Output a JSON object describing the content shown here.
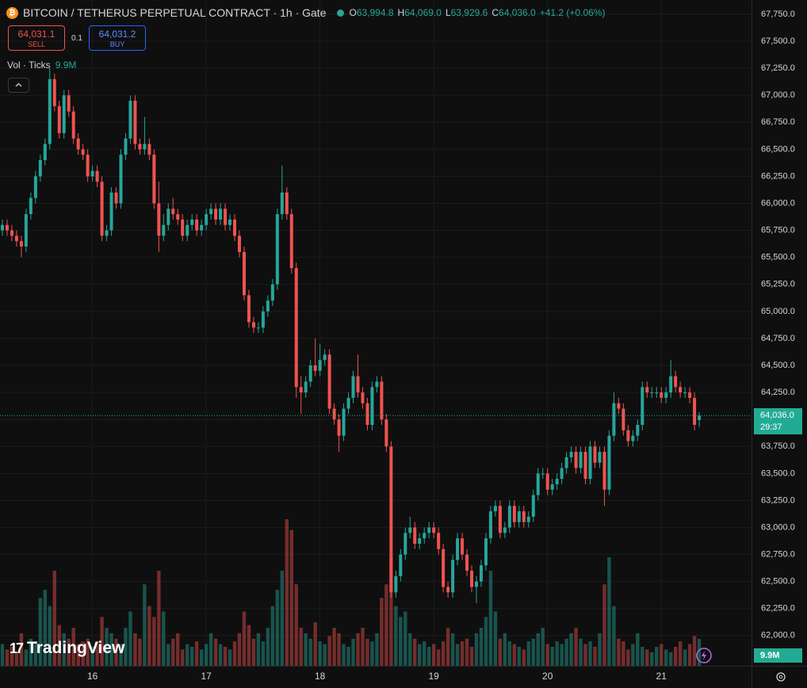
{
  "chart_data": {
    "type": "candlestick",
    "symbol_title": "BITCOIN / TETHERUS PERPETUAL CONTRACT · 1h · Gate",
    "ohlc_header": [
      {
        "key": "O",
        "text": "63,994.8"
      },
      {
        "key": "H",
        "text": "64,069.0"
      },
      {
        "key": "L",
        "text": "63,929.6"
      },
      {
        "key": "C",
        "text": "64,036.0"
      }
    ],
    "change_text": "+41.2 (+0.06%)",
    "sell": {
      "price": "64,031.1",
      "label": "SELL"
    },
    "spread": "0.1",
    "buy": {
      "price": "64,031.2",
      "label": "BUY"
    },
    "volume_indicator": {
      "name": "Vol · Ticks",
      "value": "9.9M"
    },
    "last_price_label": "64,036.0",
    "countdown": "29:37",
    "volume_badge": "9.9M",
    "logo": "TradingView",
    "up_color": "#26a69a",
    "down_color": "#ef5350",
    "grid": true,
    "ylim": [
      61720,
      67882
    ],
    "yticks": [
      {
        "value": 62000,
        "label": "62,000.0"
      },
      {
        "value": 62250,
        "label": "62,250.0"
      },
      {
        "value": 62500,
        "label": "62,500.0"
      },
      {
        "value": 62750,
        "label": "62,750.0"
      },
      {
        "value": 63000,
        "label": "63,000.0"
      },
      {
        "value": 63250,
        "label": "63,250.0"
      },
      {
        "value": 63500,
        "label": "63,500.0"
      },
      {
        "value": 63750,
        "label": "63,750.0"
      },
      {
        "value": 64000,
        "label": "64,000.0"
      },
      {
        "value": 64250,
        "label": "64,250.0"
      },
      {
        "value": 64500,
        "label": "64,500.0"
      },
      {
        "value": 64750,
        "label": "64,750.0"
      },
      {
        "value": 65000,
        "label": "65,000.0"
      },
      {
        "value": 65250,
        "label": "65,250.0"
      },
      {
        "value": 65500,
        "label": "65,500.0"
      },
      {
        "value": 65750,
        "label": "65,750.0"
      },
      {
        "value": 66000,
        "label": "66,000.0"
      },
      {
        "value": 66250,
        "label": "66,250.0"
      },
      {
        "value": 66500,
        "label": "66,500.0"
      },
      {
        "value": 66750,
        "label": "66,750.0"
      },
      {
        "value": 67000,
        "label": "67,000.0"
      },
      {
        "value": 67250,
        "label": "67,250.0"
      },
      {
        "value": 67500,
        "label": "67,500.0"
      },
      {
        "value": 67750,
        "label": "67,750.0"
      }
    ],
    "xticks": [
      {
        "value": 19,
        "label": "16"
      },
      {
        "value": 43,
        "label": "17"
      },
      {
        "value": 67,
        "label": "18"
      },
      {
        "value": 91,
        "label": "19"
      },
      {
        "value": 115,
        "label": "20"
      },
      {
        "value": 139,
        "label": "21"
      }
    ],
    "candles": {
      "open": [
        65750,
        65800,
        65750,
        65700,
        65650,
        65600,
        65900,
        66050,
        66250,
        66400,
        66550,
        67150,
        66900,
        66650,
        67000,
        66850,
        66600,
        66500,
        66450,
        66250,
        66300,
        66200,
        65700,
        65750,
        66100,
        66000,
        66450,
        66600,
        66950,
        66550,
        66500,
        66550,
        66450,
        66000,
        65700,
        65800,
        65950,
        65900,
        65850,
        65700,
        65800,
        65850,
        65750,
        65800,
        65900,
        65950,
        65850,
        65950,
        65800,
        65850,
        65700,
        65550,
        65150,
        64900,
        64850,
        64850,
        65000,
        65100,
        65250,
        65900,
        66100,
        65900,
        65400,
        64300,
        64250,
        64350,
        64500,
        64450,
        64550,
        64600,
        64100,
        64000,
        63850,
        64100,
        64200,
        64400,
        64250,
        64150,
        63950,
        64300,
        64350,
        64000,
        63750,
        62400,
        62550,
        62750,
        62950,
        63000,
        62850,
        62900,
        62950,
        63000,
        62950,
        62800,
        62450,
        62400,
        62700,
        62900,
        62750,
        62600,
        62450,
        62500,
        62650,
        62900,
        63150,
        63200,
        62950,
        63000,
        63200,
        63050,
        63150,
        63050,
        63100,
        63300,
        63500,
        63500,
        63350,
        63400,
        63450,
        63550,
        63650,
        63700,
        63550,
        63700,
        63450,
        63750,
        63600,
        63700,
        63350,
        63850,
        64150,
        64100,
        63900,
        63800,
        63850,
        63950,
        64300,
        64250,
        64250,
        64250,
        64200,
        64250,
        64400,
        64300,
        64250,
        64250,
        64200,
        63994.8
      ],
      "high": [
        65850,
        65850,
        65800,
        65750,
        65700,
        65950,
        66100,
        66300,
        66450,
        66600,
        67250,
        67200,
        66950,
        67050,
        67050,
        66900,
        66650,
        66550,
        66500,
        66350,
        66350,
        66250,
        65800,
        66150,
        66150,
        66500,
        66650,
        67000,
        67000,
        66600,
        66800,
        66600,
        66500,
        66200,
        65900,
        66000,
        66050,
        65950,
        65900,
        65850,
        65900,
        65900,
        65850,
        65950,
        66000,
        66000,
        66000,
        66000,
        65900,
        65900,
        65750,
        65600,
        65200,
        64950,
        64900,
        65050,
        65150,
        65300,
        65950,
        66350,
        66150,
        65950,
        65450,
        64400,
        64400,
        64550,
        64750,
        64700,
        64650,
        64650,
        64150,
        64050,
        64150,
        64250,
        64450,
        64600,
        64300,
        64200,
        64350,
        64400,
        64400,
        64050,
        63800,
        62600,
        62800,
        63000,
        63100,
        63050,
        62950,
        63000,
        63050,
        63050,
        63000,
        62850,
        62500,
        62750,
        62950,
        62950,
        62800,
        62650,
        62550,
        62700,
        62950,
        63200,
        63250,
        63250,
        63050,
        63250,
        63250,
        63200,
        63200,
        63150,
        63350,
        63550,
        63550,
        63550,
        63450,
        63500,
        63600,
        63700,
        63750,
        63750,
        63750,
        63750,
        63800,
        63800,
        63750,
        63750,
        63900,
        64250,
        64200,
        64150,
        63950,
        63900,
        64000,
        64350,
        64350,
        64300,
        64300,
        64300,
        64300,
        64550,
        64450,
        64350,
        64300,
        64300,
        64250,
        64069
      ],
      "low": [
        65700,
        65700,
        65650,
        65600,
        65500,
        65550,
        65850,
        66000,
        66200,
        66350,
        66500,
        66850,
        66600,
        66600,
        66800,
        66550,
        66450,
        66400,
        66200,
        66200,
        66150,
        65650,
        65650,
        65700,
        65950,
        65950,
        66400,
        66550,
        66500,
        66450,
        66450,
        66400,
        65950,
        65550,
        65650,
        65750,
        65850,
        65800,
        65650,
        65650,
        65750,
        65700,
        65700,
        65750,
        65850,
        65800,
        65800,
        65750,
        65750,
        65650,
        65500,
        65100,
        64850,
        64800,
        64800,
        64800,
        64950,
        65050,
        65200,
        65850,
        65850,
        65350,
        64200,
        64050,
        64200,
        64300,
        64400,
        64400,
        64500,
        64050,
        63950,
        63700,
        63800,
        64050,
        64150,
        64200,
        64100,
        63900,
        63900,
        64250,
        63950,
        63700,
        62350,
        62350,
        62500,
        62700,
        62900,
        62800,
        62800,
        62850,
        62900,
        62900,
        62750,
        62400,
        62350,
        62350,
        62650,
        62700,
        62550,
        62400,
        62300,
        62450,
        62600,
        62850,
        63100,
        62900,
        62900,
        62950,
        63000,
        63000,
        63000,
        63000,
        63050,
        63250,
        63450,
        63300,
        63300,
        63350,
        63400,
        63500,
        63600,
        63500,
        63500,
        63400,
        63400,
        63550,
        63550,
        63200,
        63300,
        63800,
        64050,
        63850,
        63750,
        63750,
        63800,
        63900,
        64200,
        64200,
        64200,
        64150,
        64150,
        64200,
        64250,
        64200,
        64200,
        64150,
        63900,
        63929.6
      ],
      "close": [
        65800,
        65750,
        65700,
        65650,
        65600,
        65900,
        66050,
        66250,
        66400,
        66550,
        67150,
        66900,
        66650,
        67000,
        66850,
        66600,
        66500,
        66450,
        66250,
        66300,
        66200,
        65700,
        65750,
        66100,
        66000,
        66450,
        66600,
        66950,
        66550,
        66500,
        66550,
        66450,
        66000,
        65700,
        65800,
        65950,
        65900,
        65850,
        65700,
        65800,
        65850,
        65750,
        65800,
        65900,
        65950,
        65850,
        65950,
        65800,
        65850,
        65700,
        65550,
        65150,
        64900,
        64850,
        64850,
        65000,
        65100,
        65250,
        65900,
        66100,
        65900,
        65400,
        64300,
        64250,
        64350,
        64500,
        64450,
        64550,
        64600,
        64100,
        64000,
        63850,
        64100,
        64200,
        64400,
        64250,
        64150,
        63950,
        64300,
        64350,
        64000,
        63750,
        62400,
        62550,
        62750,
        62950,
        63000,
        62850,
        62900,
        62950,
        63000,
        62950,
        62800,
        62450,
        62400,
        62700,
        62900,
        62750,
        62600,
        62450,
        62500,
        62650,
        62900,
        63150,
        63200,
        62950,
        63000,
        63200,
        63050,
        63150,
        63050,
        63100,
        63300,
        63500,
        63500,
        63350,
        63400,
        63450,
        63550,
        63650,
        63700,
        63550,
        63700,
        63450,
        63750,
        63600,
        63700,
        63350,
        63850,
        64150,
        64100,
        63900,
        63800,
        63850,
        63950,
        64300,
        64250,
        64250,
        64250,
        64200,
        64250,
        64400,
        64300,
        64250,
        64250,
        64200,
        63950,
        64036
      ],
      "volume": [
        8,
        6,
        7,
        5,
        12,
        6,
        10,
        9,
        25,
        28,
        22,
        35,
        15,
        12,
        10,
        14,
        8,
        9,
        10,
        7,
        9,
        18,
        14,
        12,
        10,
        8,
        14,
        20,
        12,
        10,
        30,
        22,
        18,
        35,
        20,
        8,
        10,
        12,
        6,
        8,
        7,
        9,
        6,
        8,
        12,
        10,
        8,
        7,
        6,
        9,
        12,
        20,
        15,
        10,
        12,
        9,
        14,
        22,
        28,
        35,
        54,
        50,
        30,
        14,
        12,
        10,
        16,
        9,
        8,
        11,
        14,
        12,
        8,
        7,
        10,
        12,
        14,
        10,
        9,
        12,
        25,
        30,
        40,
        22,
        18,
        20,
        12,
        10,
        8,
        9,
        7,
        8,
        6,
        9,
        14,
        12,
        8,
        9,
        10,
        7,
        12,
        14,
        18,
        35,
        20,
        10,
        12,
        9,
        8,
        7,
        6,
        9,
        10,
        12,
        14,
        8,
        7,
        9,
        8,
        10,
        12,
        14,
        10,
        8,
        9,
        7,
        12,
        30,
        40,
        22,
        10,
        9,
        6,
        8,
        12,
        7,
        6,
        5,
        7,
        8,
        6,
        5,
        7,
        9,
        6,
        8,
        11,
        9.9
      ]
    }
  }
}
